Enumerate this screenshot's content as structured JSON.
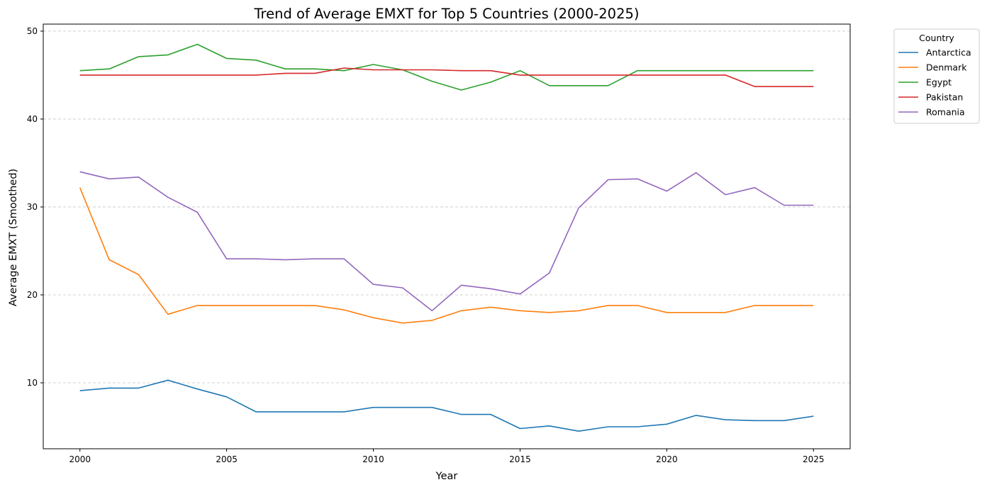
{
  "chart_data": {
    "type": "line",
    "title": "Trend of Average EMXT for Top 5 Countries (2000-2025)",
    "xlabel": "Year",
    "ylabel": "Average EMXT (Smoothed)",
    "xlim": [
      1998.75,
      2026.25
    ],
    "ylim": [
      2.5,
      50.8
    ],
    "x_ticks": [
      2000,
      2005,
      2010,
      2015,
      2020,
      2025
    ],
    "y_ticks": [
      10,
      20,
      30,
      40,
      50
    ],
    "grid": "y-dashed",
    "legend": {
      "title": "Country",
      "placement": "outside-top-right"
    },
    "x": [
      2000,
      2001,
      2002,
      2003,
      2004,
      2005,
      2006,
      2007,
      2008,
      2009,
      2010,
      2011,
      2012,
      2013,
      2014,
      2015,
      2016,
      2017,
      2018,
      2019,
      2020,
      2021,
      2022,
      2023,
      2024,
      2025
    ],
    "series": [
      {
        "name": "Antarctica",
        "color": "#1f77b4",
        "values": [
          9.1,
          9.4,
          9.4,
          10.3,
          9.3,
          8.4,
          6.7,
          6.7,
          6.7,
          6.7,
          7.2,
          7.2,
          7.2,
          6.4,
          6.4,
          4.8,
          5.1,
          4.5,
          5.0,
          5.0,
          5.3,
          6.3,
          5.8,
          5.7,
          5.7,
          6.2
        ]
      },
      {
        "name": "Denmark",
        "color": "#ff7f0e",
        "values": [
          32.2,
          24.0,
          22.3,
          17.8,
          18.8,
          18.8,
          18.8,
          18.8,
          18.8,
          18.3,
          17.4,
          16.8,
          17.1,
          18.2,
          18.6,
          18.2,
          18.0,
          18.2,
          18.8,
          18.8,
          18.0,
          18.0,
          18.0,
          18.8,
          18.8,
          18.8
        ]
      },
      {
        "name": "Egypt",
        "color": "#2ca02c",
        "values": [
          45.5,
          45.7,
          47.1,
          47.3,
          48.5,
          46.9,
          46.7,
          45.7,
          45.7,
          45.5,
          46.2,
          45.6,
          44.3,
          43.3,
          44.2,
          45.5,
          43.8,
          43.8,
          43.8,
          45.5,
          45.5,
          45.5,
          45.5,
          45.5,
          45.5,
          45.5
        ]
      },
      {
        "name": "Pakistan",
        "color": "#d62728",
        "values": [
          45.0,
          45.0,
          45.0,
          45.0,
          45.0,
          45.0,
          45.0,
          45.2,
          45.2,
          45.8,
          45.6,
          45.6,
          45.6,
          45.5,
          45.5,
          45.0,
          45.0,
          45.0,
          45.0,
          45.0,
          45.0,
          45.0,
          45.0,
          43.7,
          43.7,
          43.7
        ]
      },
      {
        "name": "Romania",
        "color": "#9467bd",
        "values": [
          34.0,
          33.2,
          33.4,
          31.1,
          29.4,
          24.1,
          24.1,
          24.0,
          24.1,
          24.1,
          21.2,
          20.8,
          18.2,
          21.1,
          20.7,
          20.1,
          22.5,
          29.9,
          33.1,
          33.2,
          31.8,
          33.9,
          31.4,
          32.2,
          30.2,
          30.2
        ]
      }
    ]
  }
}
